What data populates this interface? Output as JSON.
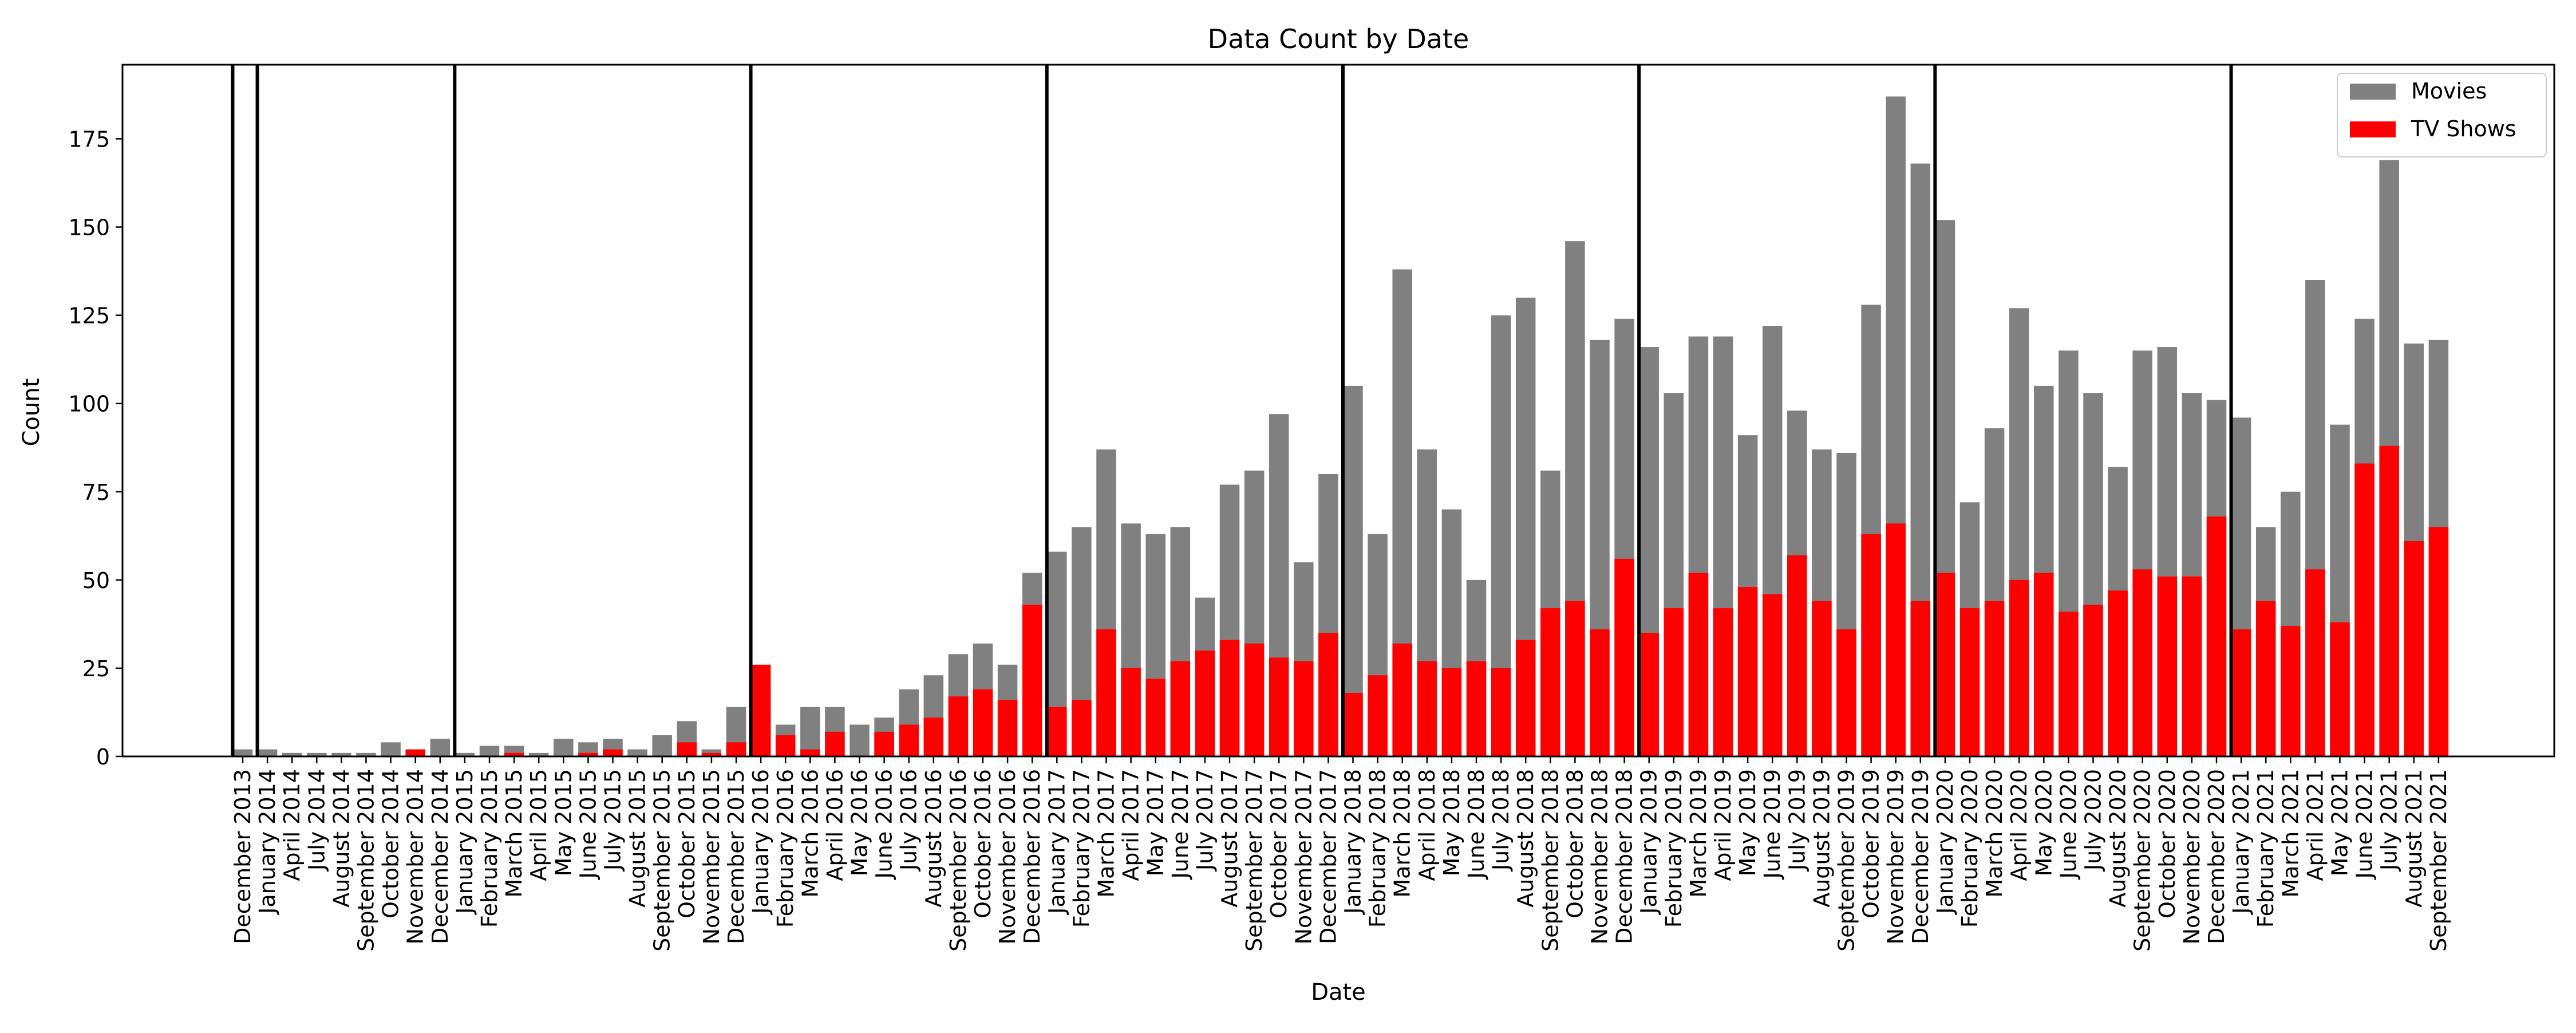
{
  "chart_data": {
    "type": "bar",
    "stacked": "overlay",
    "title": "Data Count by Date",
    "xlabel": "Date",
    "ylabel": "Count",
    "ylim": [
      0,
      196
    ],
    "yticks": [
      0,
      25,
      50,
      75,
      100,
      125,
      150,
      175
    ],
    "grid": false,
    "legend": "top-right",
    "categories": [
      "December 2013",
      "January 2014",
      "April 2014",
      "July 2014",
      "August 2014",
      "September 2014",
      "October 2014",
      "November 2014",
      "December 2014",
      "January 2015",
      "February 2015",
      "March 2015",
      "April 2015",
      "May 2015",
      "June 2015",
      "July 2015",
      "August 2015",
      "September 2015",
      "October 2015",
      "November 2015",
      "December 2015",
      "January 2016",
      "February 2016",
      "March 2016",
      "April 2016",
      "May 2016",
      "June 2016",
      "July 2016",
      "August 2016",
      "September 2016",
      "October 2016",
      "November 2016",
      "December 2016",
      "January 2017",
      "February 2017",
      "March 2017",
      "April 2017",
      "May 2017",
      "June 2017",
      "July 2017",
      "August 2017",
      "September 2017",
      "October 2017",
      "November 2017",
      "December 2017",
      "January 2018",
      "February 2018",
      "March 2018",
      "April 2018",
      "May 2018",
      "June 2018",
      "July 2018",
      "August 2018",
      "September 2018",
      "October 2018",
      "November 2018",
      "December 2018",
      "January 2019",
      "February 2019",
      "March 2019",
      "April 2019",
      "May 2019",
      "June 2019",
      "July 2019",
      "August 2019",
      "September 2019",
      "October 2019",
      "November 2019",
      "December 2019",
      "January 2020",
      "February 2020",
      "March 2020",
      "April 2020",
      "May 2020",
      "June 2020",
      "July 2020",
      "August 2020",
      "September 2020",
      "October 2020",
      "November 2020",
      "December 2020",
      "January 2021",
      "February 2021",
      "March 2021",
      "April 2021",
      "May 2021",
      "June 2021",
      "July 2021",
      "August 2021",
      "September 2021"
    ],
    "series": [
      {
        "name": "Movies",
        "color": "#808080",
        "values": [
          2,
          2,
          1,
          1,
          1,
          1,
          4,
          1,
          5,
          1,
          3,
          3,
          1,
          5,
          4,
          5,
          2,
          6,
          10,
          2,
          14,
          20,
          9,
          14,
          14,
          9,
          11,
          19,
          23,
          29,
          32,
          26,
          52,
          58,
          65,
          87,
          66,
          63,
          65,
          45,
          77,
          81,
          97,
          55,
          80,
          105,
          63,
          138,
          87,
          70,
          50,
          125,
          130,
          81,
          146,
          118,
          124,
          116,
          103,
          119,
          119,
          91,
          122,
          98,
          87,
          86,
          128,
          187,
          168,
          152,
          72,
          93,
          127,
          105,
          115,
          103,
          82,
          115,
          116,
          103,
          101,
          96,
          65,
          75,
          135,
          94,
          124,
          169,
          117,
          118
        ]
      },
      {
        "name": "TV Shows",
        "color": "#ff0000",
        "values": [
          0,
          0,
          0,
          0,
          0,
          0,
          0,
          2,
          0,
          0,
          0,
          1,
          0,
          0,
          1,
          2,
          0,
          0,
          4,
          1,
          4,
          26,
          6,
          2,
          7,
          0,
          7,
          9,
          11,
          17,
          19,
          16,
          43,
          14,
          16,
          36,
          25,
          22,
          27,
          30,
          33,
          32,
          28,
          27,
          35,
          18,
          23,
          32,
          27,
          25,
          27,
          25,
          33,
          42,
          44,
          36,
          56,
          35,
          42,
          52,
          42,
          48,
          46,
          57,
          44,
          36,
          63,
          66,
          44,
          52,
          42,
          44,
          50,
          52,
          41,
          43,
          47,
          53,
          51,
          51,
          68,
          36,
          44,
          37,
          53,
          38,
          83,
          88,
          61,
          65
        ]
      }
    ],
    "vertical_markers": [
      "December 2013",
      "January 2014",
      "January 2015",
      "January 2016",
      "January 2017",
      "January 2018",
      "January 2019",
      "January 2020",
      "January 2021"
    ]
  }
}
